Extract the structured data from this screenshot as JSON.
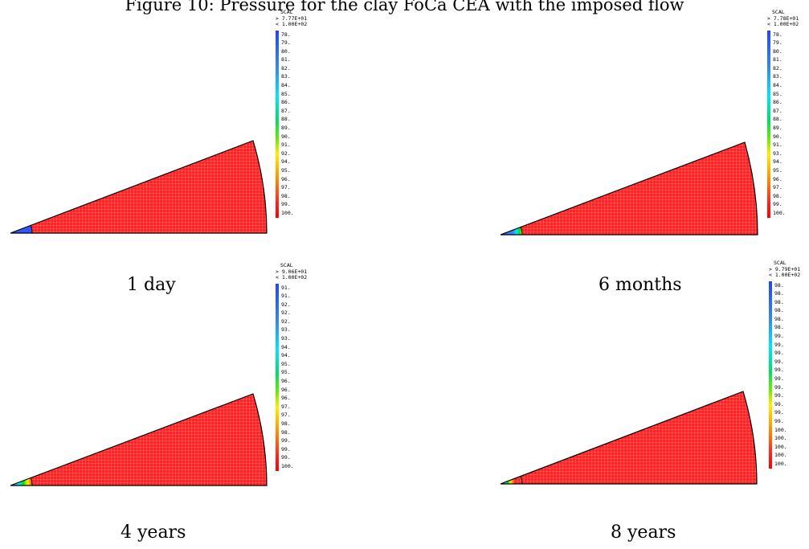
{
  "caption": "Figure 10: Pressure for the clay FoCa CEA with the imposed flow",
  "colors": {
    "min": "#3355ff",
    "mid_cyan": "#00e5ff",
    "mid_green": "#00dd00",
    "mid_yellow": "#ffee00",
    "max": "#ff2222",
    "mesh_line": "#ffbbbb",
    "outline": "#000000"
  },
  "panels": [
    {
      "label": "1 day",
      "legend": {
        "title": "SCAL",
        "max_line": "> 7.77E+01",
        "min_line": "< 1.00E+02",
        "ticks": [
          "78.",
          "79.",
          "80.",
          "81.",
          "82.",
          "83.",
          "84.",
          "85.",
          "86.",
          "87.",
          "88.",
          "89.",
          "90.",
          "91.",
          "92.",
          "94.",
          "95.",
          "96.",
          "97.",
          "98.",
          "99.",
          "100."
        ]
      }
    },
    {
      "label": "6 months",
      "legend": {
        "title": "SCAL",
        "max_line": "> 7.78E+01",
        "min_line": "< 1.00E+02",
        "ticks": [
          "78.",
          "79.",
          "80.",
          "81.",
          "82.",
          "83.",
          "84.",
          "85.",
          "86.",
          "87.",
          "88.",
          "89.",
          "90.",
          "91.",
          "93.",
          "94.",
          "95.",
          "96.",
          "97.",
          "98.",
          "99.",
          "100."
        ]
      }
    },
    {
      "label": "4 years",
      "legend": {
        "title": "SCAL",
        "max_line": "> 9.06E+01",
        "min_line": "< 1.00E+02",
        "ticks": [
          "91.",
          "91.",
          "92.",
          "92.",
          "92.",
          "93.",
          "93.",
          "94.",
          "94.",
          "95.",
          "95.",
          "96.",
          "96.",
          "96.",
          "97.",
          "97.",
          "98.",
          "98.",
          "99.",
          "99.",
          "99.",
          "100."
        ]
      }
    },
    {
      "label": "8 years",
      "legend": {
        "title": "SCAL",
        "max_line": "> 9.79E+01",
        "min_line": "< 1.00E+02",
        "ticks": [
          "98.",
          "98.",
          "98.",
          "98.",
          "98.",
          "98.",
          "99.",
          "99.",
          "99.",
          "99.",
          "99.",
          "99.",
          "99.",
          "99.",
          "99.",
          "99.",
          "99.",
          "100.",
          "100.",
          "100.",
          "100.",
          "100."
        ]
      }
    }
  ]
}
